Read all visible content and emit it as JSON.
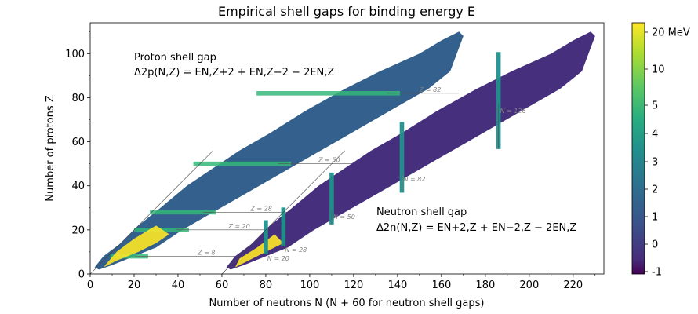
{
  "chart_data": {
    "type": "heatmap",
    "title": "Empirical shell gaps for binding energy E",
    "xlabel": "Number of neutrons N (N + 60 for neutron shell gaps)",
    "ylabel": "Number of protons Z",
    "xlim": [
      0,
      234
    ],
    "ylim": [
      0,
      114
    ],
    "x_ticks": [
      "0",
      "20",
      "40",
      "60",
      "80",
      "100",
      "120",
      "140",
      "160",
      "180",
      "200",
      "220"
    ],
    "y_ticks": [
      "0",
      "20",
      "40",
      "60",
      "80",
      "100"
    ],
    "annotations": {
      "proton_title": "Proton shell gap",
      "proton_formula": "Δ2p(N,Z) = EN,Z+2 + EN,Z−2 − 2EN,Z",
      "neutron_title": "Neutron shell gap",
      "neutron_formula": "Δ2n(N,Z) = EN+2,Z + EN−2,Z − 2EN,Z"
    },
    "proton_magic_labels": [
      {
        "label": "Z = 8",
        "z": 8,
        "x_text": 49
      },
      {
        "label": "Z = 20",
        "z": 20,
        "x_text": 63
      },
      {
        "label": "Z = 28",
        "z": 28,
        "x_text": 73
      },
      {
        "label": "Z = 50",
        "z": 50,
        "x_text": 104
      },
      {
        "label": "Z = 82",
        "z": 82,
        "x_text": 150
      }
    ],
    "neutron_magic_labels": [
      {
        "label": "N = 20",
        "n": 80,
        "z_text": 6
      },
      {
        "label": "N = 28",
        "n": 88,
        "z_text": 10
      },
      {
        "label": "N = 50",
        "n": 110,
        "z_text": 25
      },
      {
        "label": "N = 82",
        "n": 142,
        "z_text": 42
      },
      {
        "label": "N = 126",
        "n": 186,
        "z_text": 73
      }
    ],
    "colorbar": {
      "unit_label": "20 MeV",
      "ticks": [
        "10",
        "5",
        "4",
        "3",
        "2",
        "1",
        "0",
        "-1"
      ],
      "range": [
        -1,
        22
      ]
    },
    "colors": {
      "background_cells": "#33608c",
      "neutron_background": "#46307e",
      "gap_high": "#fde725",
      "gap_mid": "#35b779",
      "gap_low": "#21918c"
    }
  }
}
